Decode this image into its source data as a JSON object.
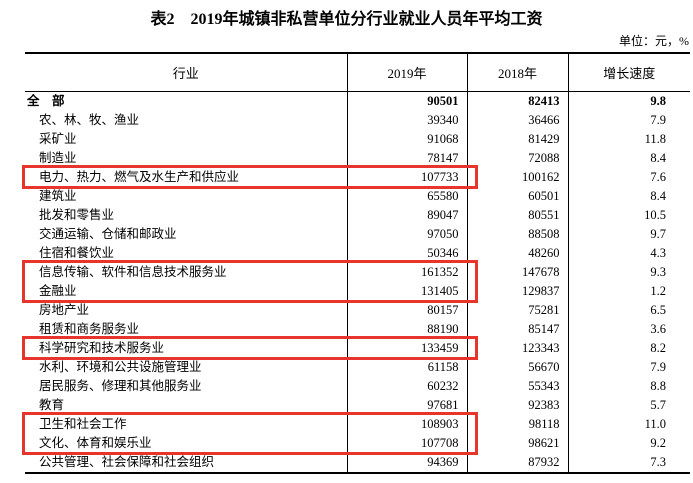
{
  "chart_data": {
    "type": "table",
    "title": "表2　2019年城镇非私营单位分行业就业人员年平均工资",
    "unit_note": "单位：元，%",
    "columns": [
      "行业",
      "2019年",
      "2018年",
      "增长速度"
    ],
    "rows": [
      [
        "全　部",
        "90501",
        "82413",
        "9.8"
      ],
      [
        "农、林、牧、渔业",
        "39340",
        "36466",
        "7.9"
      ],
      [
        "采矿业",
        "91068",
        "81429",
        "11.8"
      ],
      [
        "制造业",
        "78147",
        "72088",
        "8.4"
      ],
      [
        "电力、热力、燃气及水生产和供应业",
        "107733",
        "100162",
        "7.6"
      ],
      [
        "建筑业",
        "65580",
        "60501",
        "8.4"
      ],
      [
        "批发和零售业",
        "89047",
        "80551",
        "10.5"
      ],
      [
        "交通运输、仓储和邮政业",
        "97050",
        "88508",
        "9.7"
      ],
      [
        "住宿和餐饮业",
        "50346",
        "48260",
        "4.3"
      ],
      [
        "信息传输、软件和信息技术服务业",
        "161352",
        "147678",
        "9.3"
      ],
      [
        "金融业",
        "131405",
        "129837",
        "1.2"
      ],
      [
        "房地产业",
        "80157",
        "75281",
        "6.5"
      ],
      [
        "租赁和商务服务业",
        "88190",
        "85147",
        "3.6"
      ],
      [
        "科学研究和技术服务业",
        "133459",
        "123343",
        "8.2"
      ],
      [
        "水利、环境和公共设施管理业",
        "61158",
        "56670",
        "7.9"
      ],
      [
        "居民服务、修理和其他服务业",
        "60232",
        "55343",
        "8.8"
      ],
      [
        "教育",
        "97681",
        "92383",
        "5.7"
      ],
      [
        "卫生和社会工作",
        "108903",
        "98118",
        "11.0"
      ],
      [
        "文化、体育和娱乐业",
        "107708",
        "98621",
        "9.2"
      ],
      [
        "公共管理、社会保障和社会组织",
        "94369",
        "87932",
        "7.3"
      ]
    ],
    "bold_rows": [
      0
    ],
    "highlighted_row_ranges": [
      [
        4,
        4
      ],
      [
        9,
        10
      ],
      [
        13,
        13
      ],
      [
        17,
        18
      ]
    ],
    "highlighted_industries": [
      "电力、热力、燃气及水生产和供应业",
      "信息传输、软件和信息技术服务业",
      "金融业",
      "科学研究和技术服务业",
      "卫生和社会工作",
      "文化、体育和娱乐业"
    ],
    "layout": {
      "legend_position": "none",
      "grid": "column-dividers-only"
    }
  },
  "colors": {
    "highlight_box_red": "#e8352b",
    "border_black": "#000000",
    "background": "#ffffff"
  }
}
